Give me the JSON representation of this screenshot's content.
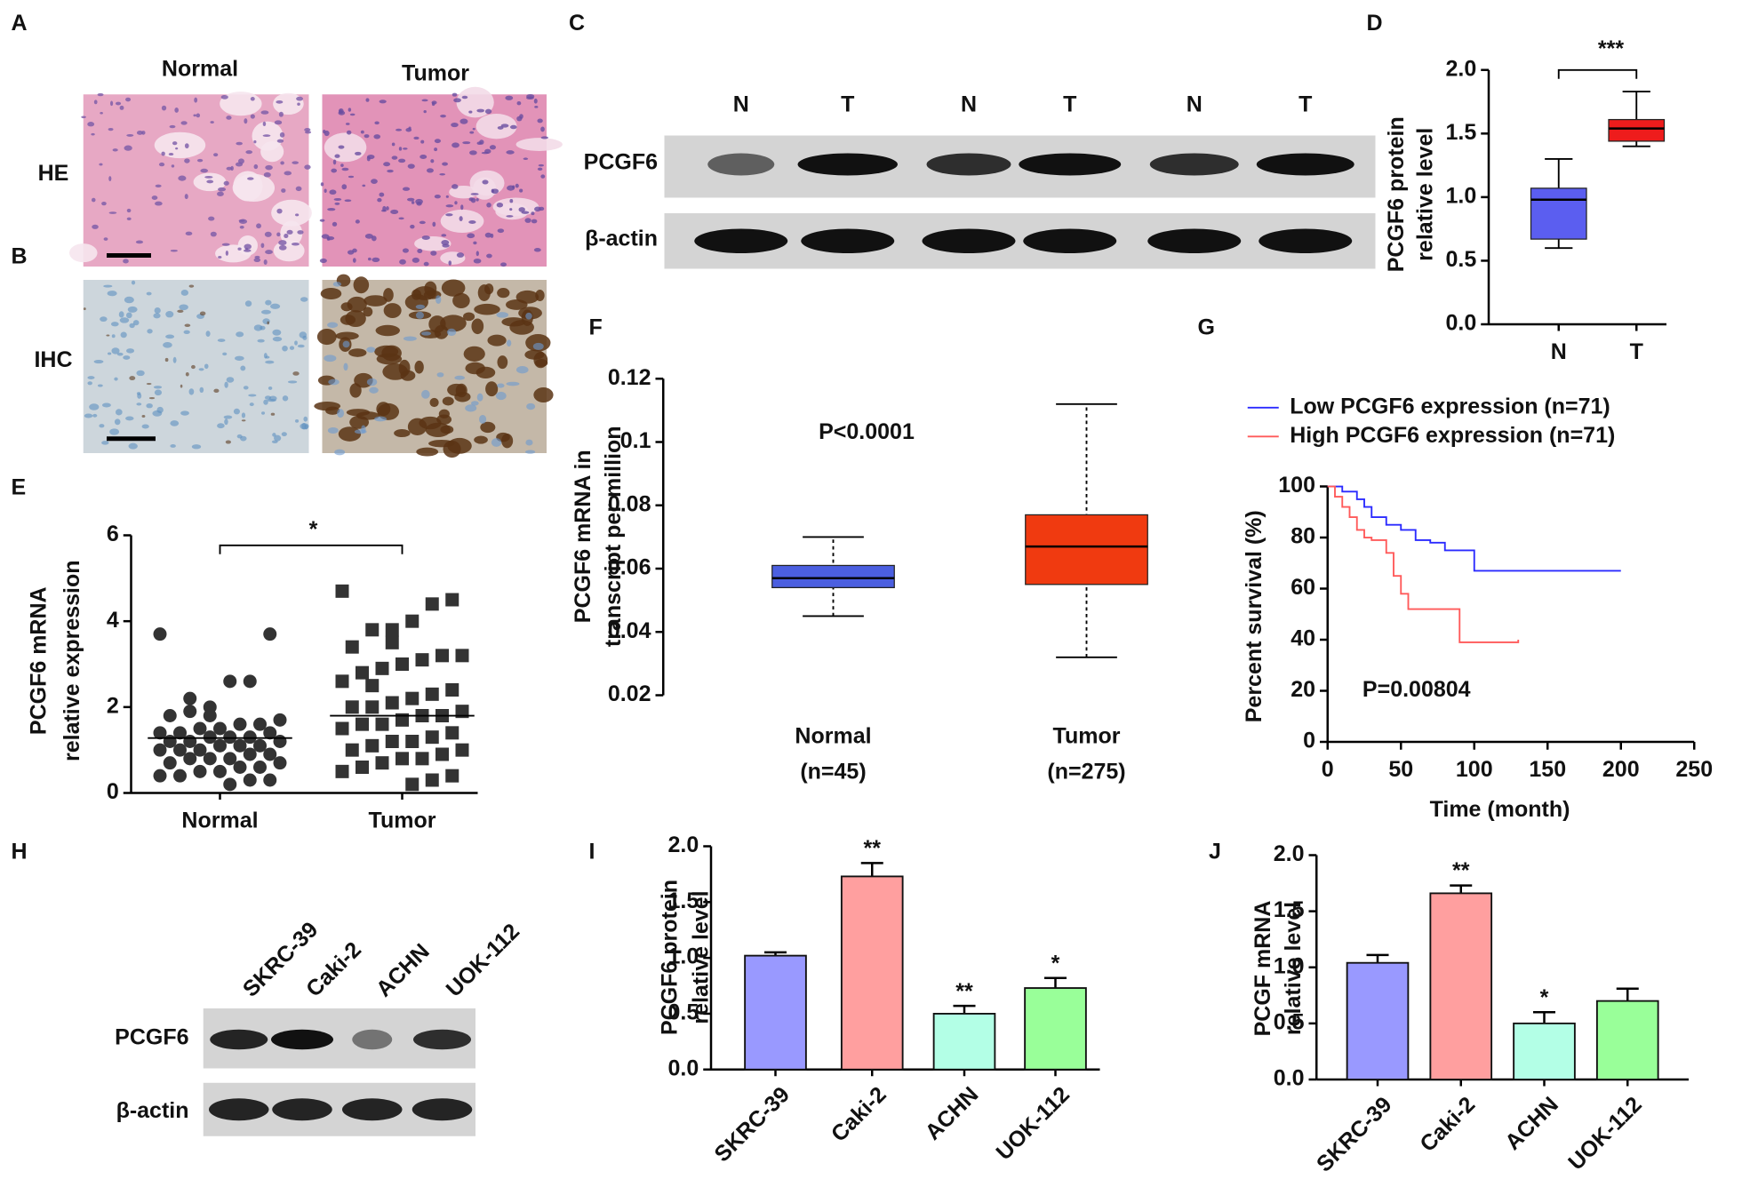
{
  "images": [
    {
      "panel": "A",
      "columns": [
        "Normal",
        "Tumor"
      ],
      "row": "HE"
    },
    {
      "panel": "B",
      "row": "IHC"
    },
    {
      "panel": "C",
      "lanes": [
        "N",
        "T",
        "N",
        "T",
        "N",
        "T"
      ],
      "rows": [
        "PCGF6",
        "β-actin"
      ]
    },
    {
      "panel": "H",
      "lanes": [
        "SKRC-39",
        "Caki-2",
        "ACHN",
        "UOK-112"
      ],
      "rows": [
        "PCGF6",
        "β-actin"
      ]
    }
  ],
  "chart_data": [
    {
      "type": "box",
      "panel": "D",
      "ylabel": [
        "PCGF6 protein",
        "relative level"
      ],
      "categories": [
        "N",
        "T"
      ],
      "boxes": [
        {
          "low": 0.6,
          "q1": 0.67,
          "median": 0.98,
          "q3": 1.07,
          "high": 1.3
        },
        {
          "low": 1.4,
          "q1": 1.44,
          "median": 1.54,
          "q3": 1.61,
          "high": 1.83
        }
      ],
      "colors": [
        "#5b5ef0",
        "#ee1c1c"
      ],
      "ylim": [
        0,
        2
      ],
      "yticks": [
        {
          "value": 0,
          "label": "0.0"
        },
        0.5,
        {
          "value": 1,
          "label": "1.0"
        },
        1.5,
        {
          "value": 2,
          "label": "2.0"
        }
      ],
      "annotation": "***",
      "whisker_dashed": false
    },
    {
      "type": "strip",
      "panel": "E",
      "ylabel": [
        "PCGF6 mRNA",
        "relative expression"
      ],
      "categories": [
        "Normal",
        "Tumor"
      ],
      "values": [
        [
          3.7,
          3.7,
          2.6,
          2.6,
          2.0,
          1.9,
          1.8,
          1.7,
          1.6,
          1.6,
          1.5,
          1.5,
          1.4,
          1.4,
          1.4,
          1.3,
          1.3,
          1.3,
          1.2,
          1.2,
          1.2,
          1.1,
          1.1,
          1.1,
          1.0,
          1.0,
          1.0,
          0.9,
          0.9,
          0.8,
          0.8,
          0.8,
          0.7,
          0.7,
          0.6,
          0.6,
          0.5,
          0.5,
          0.4,
          0.4,
          0.3,
          0.3,
          0.2,
          1.8,
          2.2
        ],
        [
          4.7,
          4.5,
          4.4,
          4.0,
          3.8,
          3.8,
          3.4,
          3.2,
          3.2,
          3.1,
          3.0,
          2.9,
          2.8,
          2.6,
          2.4,
          2.3,
          2.2,
          2.1,
          2.0,
          2.0,
          1.9,
          1.8,
          1.8,
          1.7,
          1.6,
          1.6,
          1.5,
          1.4,
          1.3,
          1.2,
          1.2,
          1.1,
          1.0,
          1.0,
          0.9,
          0.8,
          0.8,
          0.7,
          0.6,
          0.5,
          0.4,
          0.3,
          0.2,
          3.5,
          2.5
        ]
      ],
      "means": [
        1.28,
        1.8
      ],
      "color": "#333333",
      "ylim": [
        0,
        6
      ],
      "yticks": [
        0,
        2,
        4,
        6
      ],
      "annotation": "*"
    },
    {
      "type": "box",
      "panel": "F",
      "ylabel": [
        "PCGF6 mRNA in",
        "transcript per million"
      ],
      "categories": [
        "Normal",
        "Tumor"
      ],
      "category_notes": [
        "(n=45)",
        "(n=275)"
      ],
      "boxes": [
        {
          "low": 0.045,
          "q1": 0.054,
          "median": 0.057,
          "q3": 0.061,
          "high": 0.07
        },
        {
          "low": 0.032,
          "q1": 0.055,
          "median": 0.067,
          "q3": 0.077,
          "high": 0.112
        }
      ],
      "colors": [
        "#4b5fe0",
        "#f03a10"
      ],
      "ylim": [
        0.02,
        0.12
      ],
      "yticks": [
        0.02,
        0.04,
        0.06,
        0.08,
        0.1,
        0.12
      ],
      "annotation": "P<0.0001",
      "whisker_dashed": true
    },
    {
      "type": "line",
      "panel": "G",
      "ylabel": [
        "Percent survival (%)"
      ],
      "xlabel": "Time (month)",
      "series": [
        {
          "name": "Low PCGF6 expression (n=71)",
          "color": "#2b2bff",
          "x": [
            0,
            10,
            20,
            25,
            30,
            40,
            50,
            60,
            70,
            80,
            100,
            200
          ],
          "values": [
            100,
            98,
            95,
            92,
            88,
            85,
            83,
            79,
            78,
            75,
            67,
            67
          ]
        },
        {
          "name": "High PCGF6 expression (n=71)",
          "color": "#ff5a5a",
          "x": [
            0,
            5,
            10,
            15,
            20,
            25,
            30,
            40,
            45,
            50,
            55,
            90,
            130
          ],
          "values": [
            100,
            96,
            92,
            88,
            83,
            80,
            79,
            74,
            65,
            58,
            52,
            39,
            40
          ]
        }
      ],
      "xlim": [
        0,
        250
      ],
      "xticks": [
        0,
        50,
        100,
        150,
        200,
        250
      ],
      "ylim": [
        0,
        100
      ],
      "yticks": [
        0,
        20,
        40,
        60,
        80,
        100
      ],
      "annotation": "P=0.00804"
    },
    {
      "type": "bar",
      "panel": "I",
      "ylabel": [
        "PCGF6 protein",
        "relative level"
      ],
      "categories": [
        "SKRC-39",
        "Caki-2",
        "ACHN",
        "UOK-112"
      ],
      "values": [
        1.02,
        1.73,
        0.5,
        0.73
      ],
      "errors": [
        0.03,
        0.12,
        0.07,
        0.09
      ],
      "sig_labels": [
        null,
        "**",
        "**",
        "*"
      ],
      "colors": [
        "#9999ff",
        "#ff9f9f",
        "#b3ffe6",
        "#99ff99"
      ],
      "ylim": [
        0,
        2
      ],
      "yticks": [
        {
          "value": 0,
          "label": "0.0"
        },
        0.5,
        {
          "value": 1,
          "label": "1.0"
        },
        1.5,
        {
          "value": 2,
          "label": "2.0"
        }
      ]
    },
    {
      "type": "bar",
      "panel": "J",
      "ylabel": [
        "PCGF mRNA",
        "relative level"
      ],
      "categories": [
        "SKRC-39",
        "Caki-2",
        "ACHN",
        "UOK-112"
      ],
      "values": [
        1.04,
        1.66,
        0.5,
        0.7
      ],
      "errors": [
        0.07,
        0.07,
        0.1,
        0.11
      ],
      "sig_labels": [
        null,
        "**",
        "*",
        null
      ],
      "colors": [
        "#9999ff",
        "#ff9f9f",
        "#b3ffe6",
        "#99ff99"
      ],
      "ylim": [
        0,
        2
      ],
      "yticks": [
        {
          "value": 0,
          "label": "0.0"
        },
        0.5,
        {
          "value": 1,
          "label": "1.0"
        },
        1.5,
        {
          "value": 2,
          "label": "2.0"
        }
      ]
    }
  ]
}
